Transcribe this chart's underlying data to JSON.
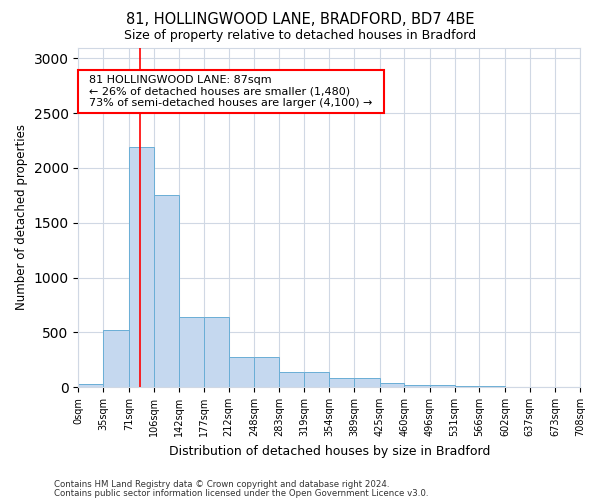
{
  "title": "81, HOLLINGWOOD LANE, BRADFORD, BD7 4BE",
  "subtitle": "Size of property relative to detached houses in Bradford",
  "xlabel": "Distribution of detached houses by size in Bradford",
  "ylabel": "Number of detached properties",
  "footnote1": "Contains HM Land Registry data © Crown copyright and database right 2024.",
  "footnote2": "Contains public sector information licensed under the Open Government Licence v3.0.",
  "annotation_title": "81 HOLLINGWOOD LANE: 87sqm",
  "annotation_line2": "← 26% of detached houses are smaller (1,480)",
  "annotation_line3": "73% of semi-detached houses are larger (4,100) →",
  "bar_data": [
    [
      0,
      35,
      25
    ],
    [
      35,
      71,
      520
    ],
    [
      71,
      106,
      2190
    ],
    [
      106,
      142,
      1750
    ],
    [
      142,
      177,
      640
    ],
    [
      177,
      212,
      640
    ],
    [
      212,
      248,
      270
    ],
    [
      248,
      283,
      270
    ],
    [
      283,
      319,
      135
    ],
    [
      319,
      354,
      135
    ],
    [
      354,
      389,
      80
    ],
    [
      389,
      425,
      80
    ],
    [
      425,
      460,
      40
    ],
    [
      460,
      496,
      15
    ],
    [
      496,
      531,
      15
    ],
    [
      531,
      566,
      10
    ],
    [
      566,
      602,
      10
    ],
    [
      602,
      637,
      5
    ],
    [
      637,
      673,
      5
    ],
    [
      673,
      708,
      5
    ]
  ],
  "bar_color": "#c5d8ef",
  "bar_edge_color": "#6aaed6",
  "red_line_x": 87,
  "ylim": [
    0,
    3100
  ],
  "yticks": [
    0,
    500,
    1000,
    1500,
    2000,
    2500,
    3000
  ],
  "xtick_positions": [
    0,
    35,
    71,
    106,
    142,
    177,
    212,
    248,
    283,
    319,
    354,
    389,
    425,
    460,
    496,
    531,
    566,
    602,
    637,
    673,
    708
  ],
  "xtick_labels": [
    "0sqm",
    "35sqm",
    "71sqm",
    "106sqm",
    "142sqm",
    "177sqm",
    "212sqm",
    "248sqm",
    "283sqm",
    "319sqm",
    "354sqm",
    "389sqm",
    "425sqm",
    "460sqm",
    "496sqm",
    "531sqm",
    "566sqm",
    "602sqm",
    "637sqm",
    "673sqm",
    "708sqm"
  ],
  "background_color": "#ffffff",
  "grid_color": "#d0d8e4"
}
